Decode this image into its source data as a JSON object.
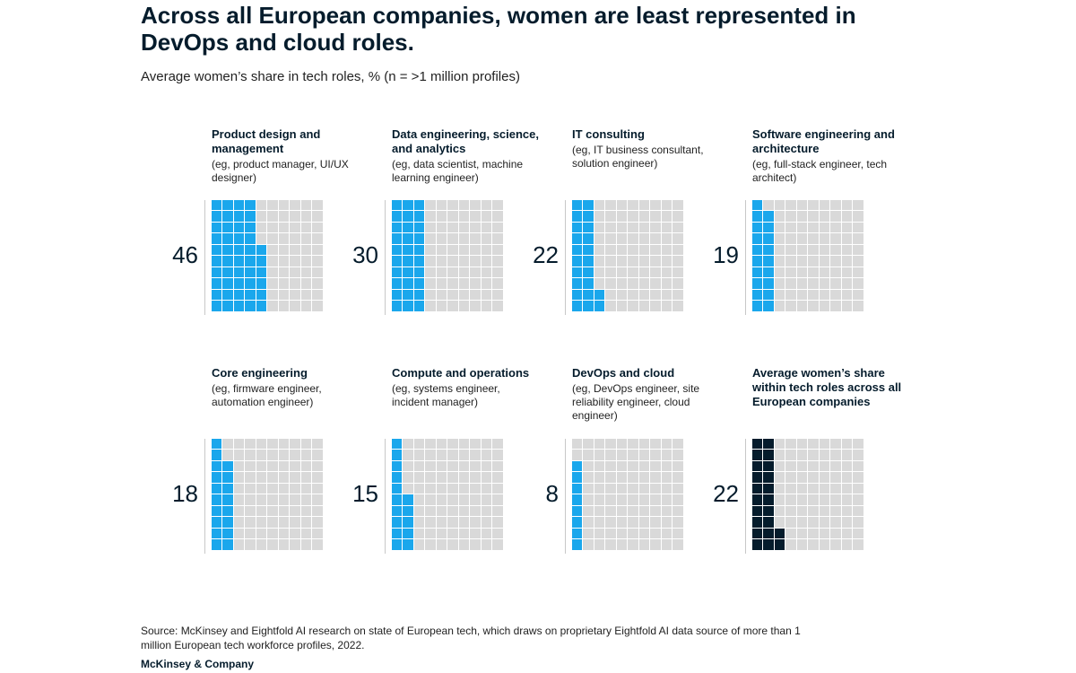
{
  "title": "Across all European companies, women are least represented in DevOps and cloud roles.",
  "subtitle": "Average women’s share in tech roles, % (n = >1 million profiles)",
  "source": "Source: McKinsey and Eightfold AI research on state of European tech, which draws on proprietary Eightfold AI data source of more than 1 million European tech workforce profiles, 2022.",
  "brand": "McKinsey & Company",
  "colors": {
    "filled": "#1aa7ec",
    "average_filled": "#051c2c",
    "empty": "#d9d9d9"
  },
  "chart_data": {
    "type": "waffle",
    "title": "Across all European companies, women are least represented in DevOps and cloud roles.",
    "subtitle": "Average women’s share in tech roles, % (n = >1 million profiles)",
    "unit": "%",
    "grid": "10x10",
    "panels": [
      {
        "title": "Product design and management",
        "desc": "(eg, product manager, UI/UX designer)",
        "value": 46,
        "label": "46"
      },
      {
        "title": "Data engineering, science, and analytics",
        "desc": "(eg, data scientist, machine learning engineer)",
        "value": 30,
        "label": "30"
      },
      {
        "title": "IT consulting",
        "desc": "(eg, IT business consultant, solution engineer)",
        "value": 22,
        "label": "22"
      },
      {
        "title": "Software engineering and architecture",
        "desc": "(eg, full-stack engineer, tech architect)",
        "value": 19,
        "label": "19"
      },
      {
        "title": "Core engineering",
        "desc": "(eg, firmware engineer, automation engineer)",
        "value": 18,
        "label": "18"
      },
      {
        "title": "Compute and operations",
        "desc": "(eg, systems engineer, incident manager)",
        "value": 15,
        "label": "15"
      },
      {
        "title": "DevOps and cloud",
        "desc": "(eg, DevOps engineer, site reliability engineer, cloud engineer)",
        "value": 8,
        "label": "8"
      },
      {
        "title": "Average women’s share within tech roles across all European companies",
        "desc": "",
        "value": 22,
        "label": "22",
        "highlight": true
      }
    ]
  }
}
